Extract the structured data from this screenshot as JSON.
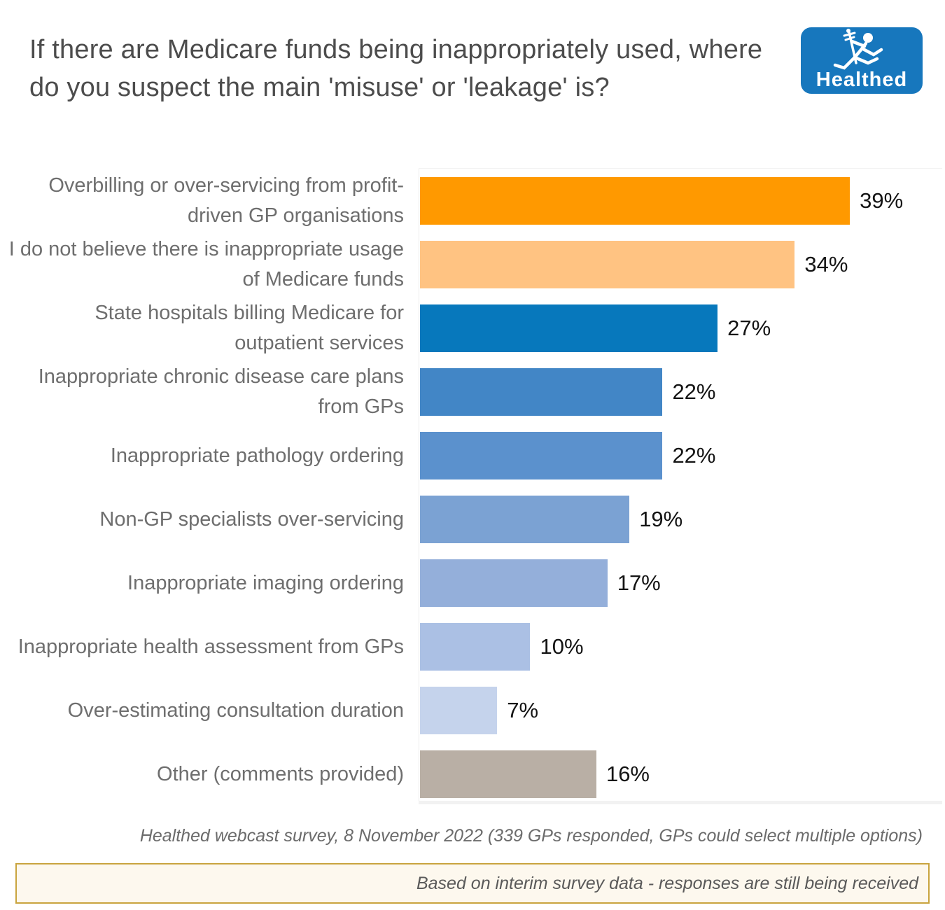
{
  "header": {
    "title": "If there are Medicare funds being inappropriately used, where do you suspect the main 'misuse' or 'leakage' is?",
    "logo": {
      "text": "Healthed",
      "bg_color": "#1777BD",
      "fg_color": "#ffffff"
    }
  },
  "chart_data": {
    "type": "bar",
    "orientation": "horizontal",
    "title": "If there are Medicare funds being inappropriately used, where do you suspect the main 'misuse' or 'leakage' is?",
    "categories": [
      "Overbilling or over-servicing from profit-driven GP organisations",
      "I do not believe there is inappropriate usage of Medicare funds",
      "State hospitals billing Medicare for outpatient services",
      "Inappropriate chronic disease care plans from GPs",
      "Inappropriate pathology ordering",
      "Non-GP specialists over-servicing",
      "Inappropriate imaging ordering",
      "Inappropriate health assessment from GPs",
      "Over-estimating consultation duration",
      "Other (comments provided)"
    ],
    "values": [
      39,
      34,
      27,
      22,
      22,
      19,
      17,
      10,
      7,
      16
    ],
    "value_suffix": "%",
    "colors": [
      "#FF9900",
      "#FFC382",
      "#0778BC",
      "#4286C6",
      "#5B91CD",
      "#7BA2D3",
      "#94AFDA",
      "#ABC0E4",
      "#C5D3EC",
      "#B9AFA5"
    ],
    "xlabel": "",
    "ylabel": "",
    "xlim": [
      0,
      47.5
    ],
    "grid": false,
    "legend": false,
    "bar_labels": [
      "39%",
      "34%",
      "27%",
      "22%",
      "22%",
      "19%",
      "17%",
      "10%",
      "7%",
      "16%"
    ]
  },
  "caption": "Healthed webcast survey, 8 November 2022 (339 GPs responded, GPs could select multiple options)",
  "banner": {
    "text": "Based on interim survey data - responses are still being received",
    "border_color": "#C9A43F",
    "bg_color": "#FDF8EE"
  }
}
